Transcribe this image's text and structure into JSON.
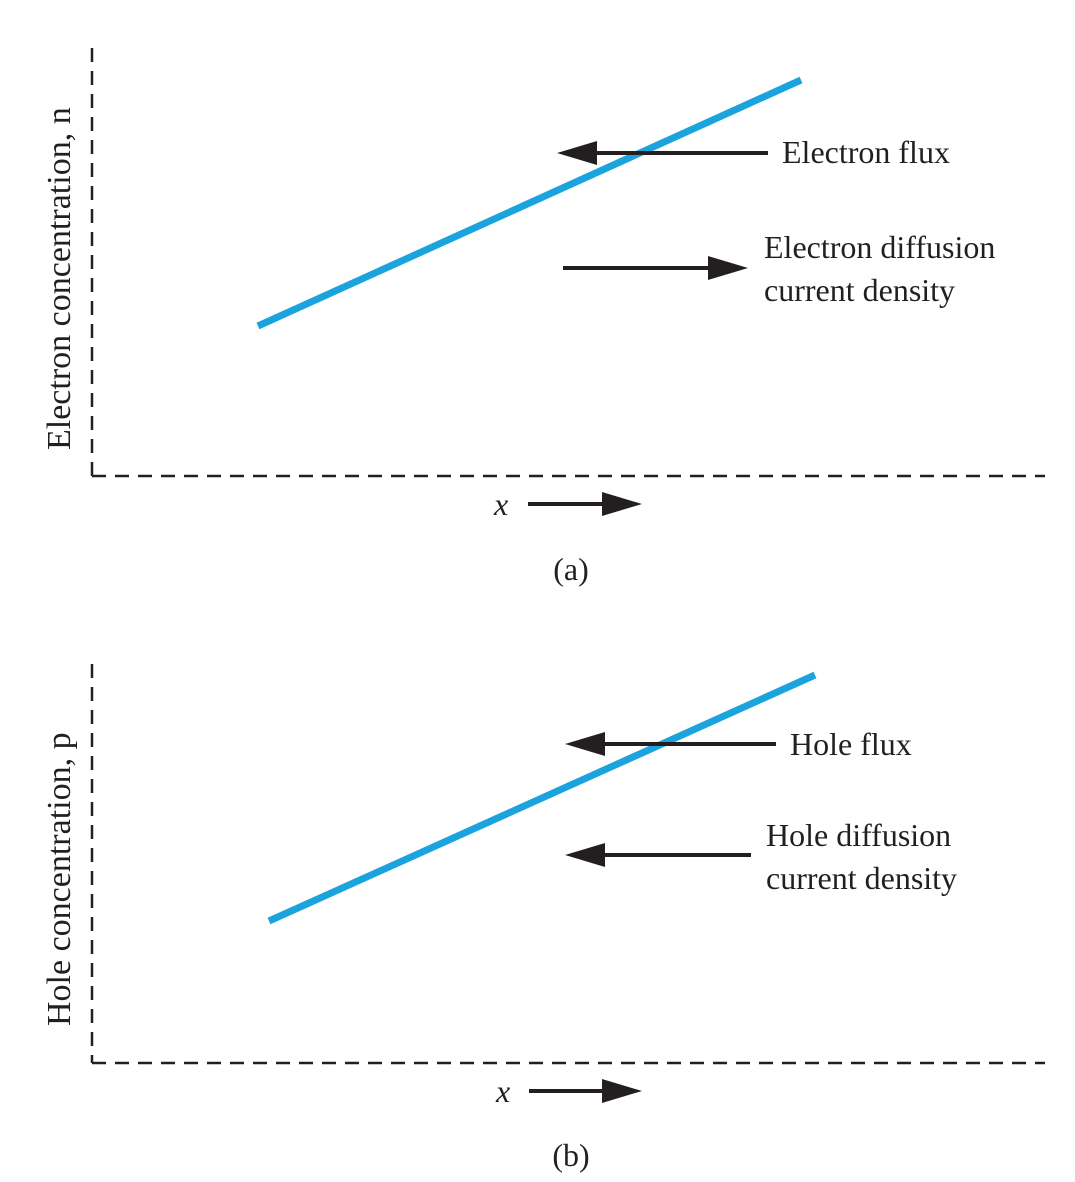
{
  "colors": {
    "curve": "#1aa3dc",
    "ink": "#231f20",
    "background": "#ffffff"
  },
  "panels": [
    {
      "id": "a",
      "y_axis_label": "Electron concentration, n",
      "x_axis_label": "x",
      "caption": "(a)",
      "flux_label": "Electron flux",
      "flux_direction": "left",
      "current_label_line1": "Electron diffusion",
      "current_label_line2": "current density",
      "current_direction": "right"
    },
    {
      "id": "b",
      "y_axis_label": "Hole concentration, p",
      "x_axis_label": "x",
      "caption": "(b)",
      "flux_label": "Hole flux",
      "flux_direction": "left",
      "current_label_line1": "Hole diffusion",
      "current_label_line2": "current density",
      "current_direction": "left"
    }
  ]
}
